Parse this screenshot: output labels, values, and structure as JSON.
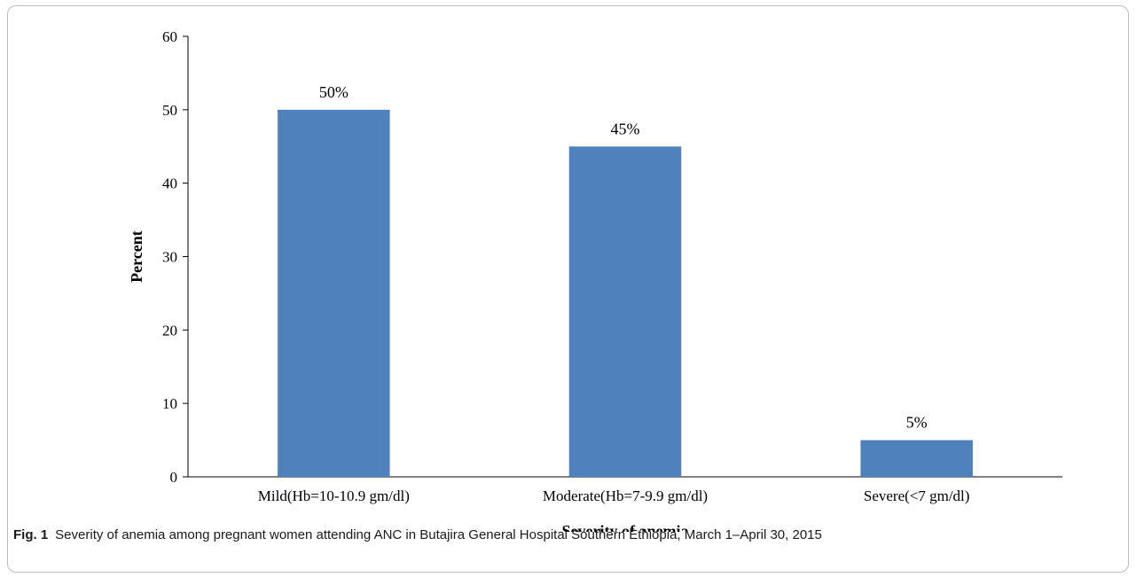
{
  "chart_data": {
    "type": "bar",
    "categories": [
      "Mild(Hb=10-10.9 gm/dl)",
      "Moderate(Hb=7-9.9 gm/dl)",
      "Severe(<7 gm/dl)"
    ],
    "values": [
      50,
      45,
      5
    ],
    "data_labels": [
      "50%",
      "45%",
      "5%"
    ],
    "xlabel": "Severity of anemia",
    "ylabel": "Percent",
    "ylim": [
      0,
      60
    ],
    "yticks": [
      0,
      10,
      20,
      30,
      40,
      50,
      60
    ],
    "bar_color": "#4f81bd",
    "grid": false,
    "legend": "none"
  },
  "caption": {
    "label": "Fig. 1",
    "text": "Severity of anemia among pregnant women attending ANC in Butajira General Hospital Southern Ethiopia, March 1–April 30, 2015"
  }
}
